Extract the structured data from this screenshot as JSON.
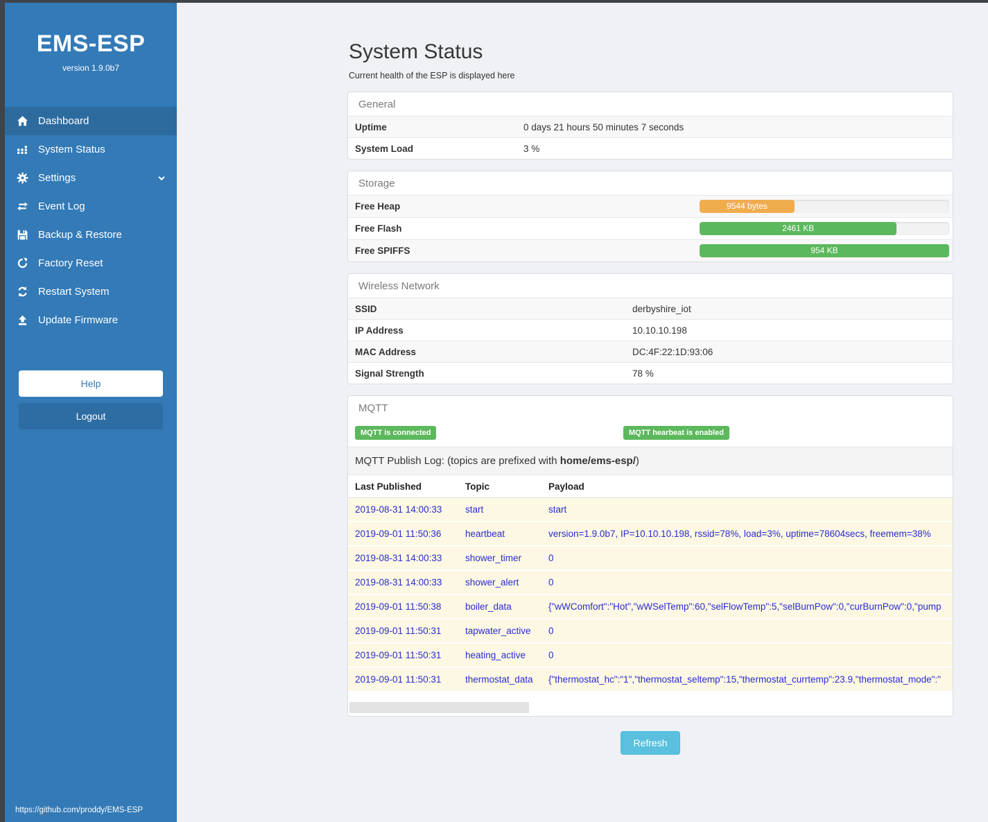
{
  "sidebar": {
    "title": "EMS-ESP",
    "version": "version 1.9.0b7",
    "items": [
      {
        "label": "Dashboard",
        "icon": "home-icon",
        "active": true,
        "chevron": false
      },
      {
        "label": "System Status",
        "icon": "system-status-icon",
        "active": false,
        "chevron": false
      },
      {
        "label": "Settings",
        "icon": "gear-icon",
        "active": false,
        "chevron": true
      },
      {
        "label": "Event Log",
        "icon": "exchange-icon",
        "active": false,
        "chevron": false
      },
      {
        "label": "Backup & Restore",
        "icon": "save-icon",
        "active": false,
        "chevron": false
      },
      {
        "label": "Factory Reset",
        "icon": "rotate-icon",
        "active": false,
        "chevron": false
      },
      {
        "label": "Restart System",
        "icon": "refresh-icon",
        "active": false,
        "chevron": false
      },
      {
        "label": "Update Firmware",
        "icon": "upload-icon",
        "active": false,
        "chevron": false
      }
    ],
    "help_label": "Help",
    "logout_label": "Logout",
    "footer_link": "https://github.com/proddy/EMS-ESP"
  },
  "page": {
    "title": "System Status",
    "subtitle": "Current health of the ESP is displayed here",
    "refresh_label": "Refresh"
  },
  "general": {
    "header": "General",
    "rows": [
      {
        "label": "Uptime",
        "value": "0 days 21 hours 50 minutes 7 seconds"
      },
      {
        "label": "System Load",
        "value": "3 %"
      }
    ]
  },
  "storage": {
    "header": "Storage",
    "rows": [
      {
        "label": "Free Heap",
        "value": "9544 bytes",
        "percent": 38,
        "color": "#f0ad4e"
      },
      {
        "label": "Free Flash",
        "value": "2461 KB",
        "percent": 79,
        "color": "#5cb85c"
      },
      {
        "label": "Free SPIFFS",
        "value": "954 KB",
        "percent": 100,
        "color": "#5cb85c"
      }
    ]
  },
  "wireless": {
    "header": "Wireless Network",
    "rows": [
      {
        "label": "SSID",
        "value": "derbyshire_iot"
      },
      {
        "label": "IP Address",
        "value": "10.10.10.198"
      },
      {
        "label": "MAC Address",
        "value": "DC:4F:22:1D:93:06"
      },
      {
        "label": "Signal Strength",
        "value": "78 %"
      }
    ]
  },
  "mqtt": {
    "header": "MQTT",
    "badges": [
      "MQTT is connected",
      "MQTT hearbeat is enabled"
    ],
    "publish_log_prefix_text": "MQTT Publish Log: (topics are prefixed with ",
    "publish_log_prefix_bold": "home/ems-esp/",
    "publish_log_suffix": ")",
    "columns": [
      "Last Published",
      "Topic",
      "Payload"
    ],
    "log": [
      {
        "time": "2019-08-31 14:00:33",
        "topic": "start",
        "payload": "start"
      },
      {
        "time": "2019-09-01 11:50:36",
        "topic": "heartbeat",
        "payload": "version=1.9.0b7, IP=10.10.10.198, rssid=78%, load=3%, uptime=78604secs, freemem=38%"
      },
      {
        "time": "2019-08-31 14:00:33",
        "topic": "shower_timer",
        "payload": "0"
      },
      {
        "time": "2019-08-31 14:00:33",
        "topic": "shower_alert",
        "payload": "0"
      },
      {
        "time": "2019-09-01 11:50:38",
        "topic": "boiler_data",
        "payload": "{\"wWComfort\":\"Hot\",\"wWSelTemp\":60,\"selFlowTemp\":5,\"selBurnPow\":0,\"curBurnPow\":0,\"pump"
      },
      {
        "time": "2019-09-01 11:50:31",
        "topic": "tapwater_active",
        "payload": "0"
      },
      {
        "time": "2019-09-01 11:50:31",
        "topic": "heating_active",
        "payload": "0"
      },
      {
        "time": "2019-09-01 11:50:31",
        "topic": "thermostat_data",
        "payload": "{\"thermostat_hc\":\"1\",\"thermostat_seltemp\":15,\"thermostat_currtemp\":23.9,\"thermostat_mode\":\""
      }
    ]
  },
  "colors": {
    "sidebar_blue": "#337ab7",
    "sidebar_active_blue": "#2d6b9f",
    "logout_blue": "#2e6da4",
    "badge_green": "#5cb85c",
    "bar_orange": "#f0ad4e",
    "bar_green": "#5cb85c",
    "refresh_blue": "#5bc0de",
    "log_row_bg": "#fcf8e3",
    "log_text_blue": "#2b2bd0",
    "frame_dark": "#3f4449"
  }
}
